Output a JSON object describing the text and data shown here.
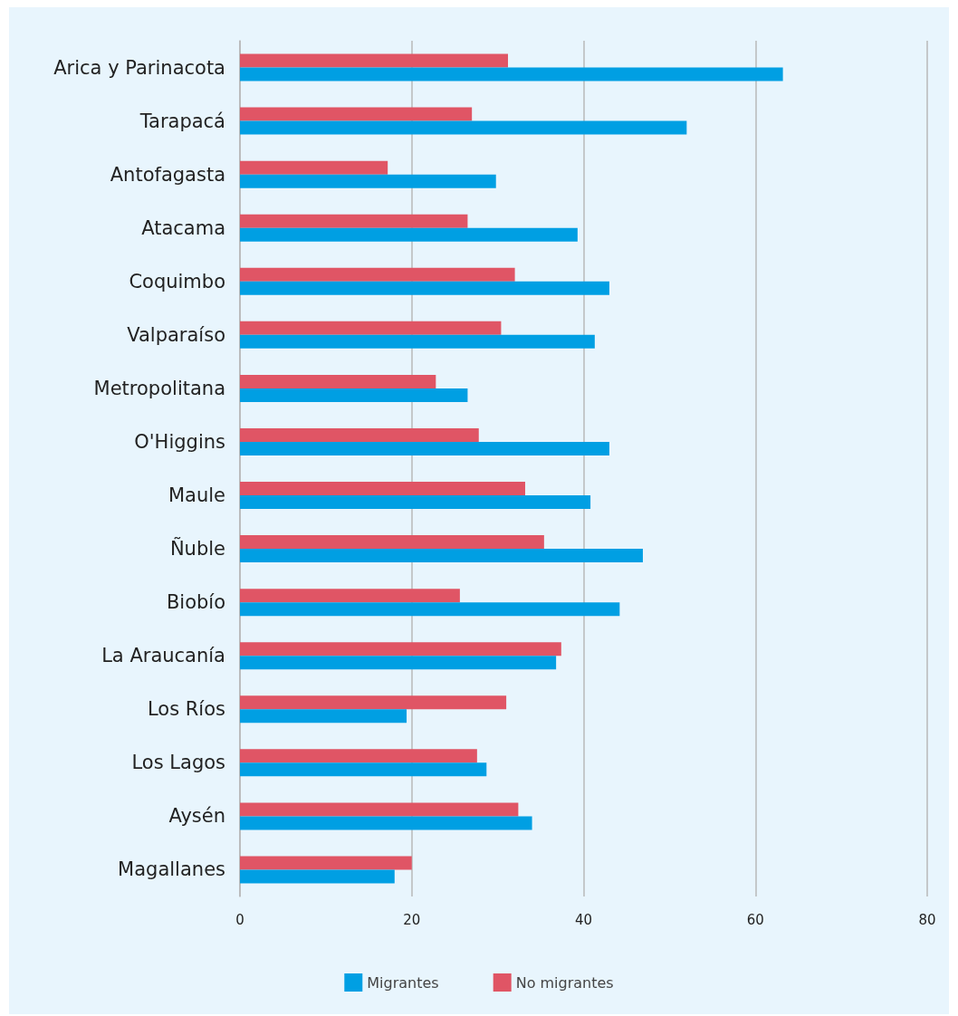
{
  "chart_data": {
    "type": "bar",
    "orientation": "horizontal",
    "categories": [
      "Arica y Parinacota",
      "Tarapacá",
      "Antofagasta",
      "Atacama",
      "Coquimbo",
      "Valparaíso",
      "Metropolitana",
      "O'Higgins",
      "Maule",
      "Ñuble",
      "Biobío",
      "La Araucanía",
      "Los Ríos",
      "Los Lagos",
      "Aysén",
      "Magallanes"
    ],
    "series": [
      {
        "name": "Migrantes",
        "color": "#009fe3",
        "values": [
          63.2,
          52.0,
          29.8,
          39.3,
          43.0,
          41.3,
          26.5,
          43.0,
          40.8,
          46.9,
          44.2,
          36.8,
          19.4,
          28.7,
          34.0,
          18.0
        ]
      },
      {
        "name": "No migrantes",
        "color": "#e05565",
        "values": [
          31.2,
          27.0,
          17.2,
          26.5,
          32.0,
          30.4,
          22.8,
          27.8,
          33.2,
          35.4,
          25.6,
          37.4,
          31.0,
          27.6,
          32.4,
          20.0
        ]
      }
    ],
    "xlim": [
      0,
      80
    ],
    "xticks": [
      0,
      20,
      40,
      60,
      80
    ],
    "grid": "x",
    "legend": "bottom"
  }
}
